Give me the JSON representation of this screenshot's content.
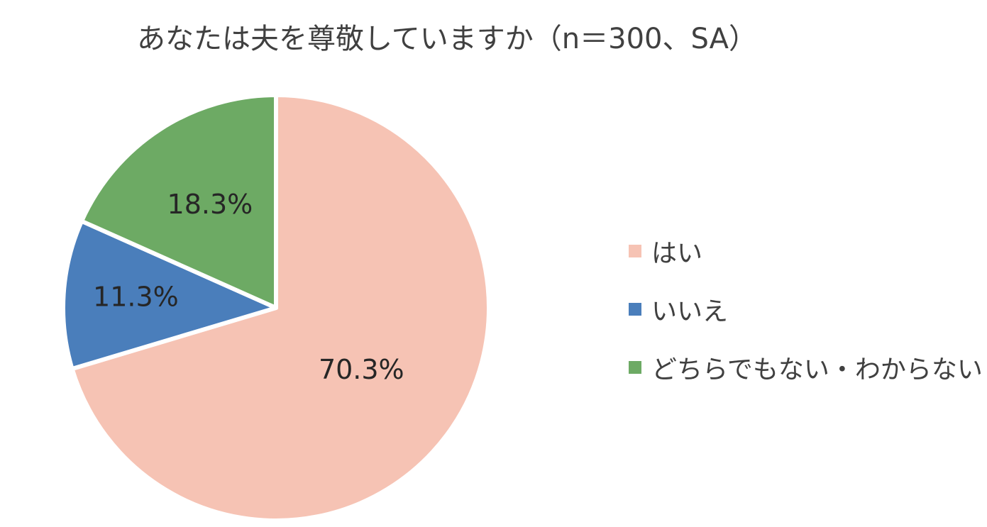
{
  "chart_data": {
    "type": "pie",
    "title": "あなたは夫を尊敬していますか（n＝300、SA）",
    "categories": [
      "はい",
      "いいえ",
      "どちらでもない・わからない"
    ],
    "values": [
      70.3,
      11.3,
      18.3
    ],
    "value_labels": [
      "70.3%",
      "11.3%",
      "18.3%"
    ],
    "colors": [
      "#F6C3B4",
      "#4A7EBB",
      "#6DAA64"
    ],
    "start_angle": "12 o'clock",
    "direction": "clockwise",
    "legend_position": "right"
  }
}
